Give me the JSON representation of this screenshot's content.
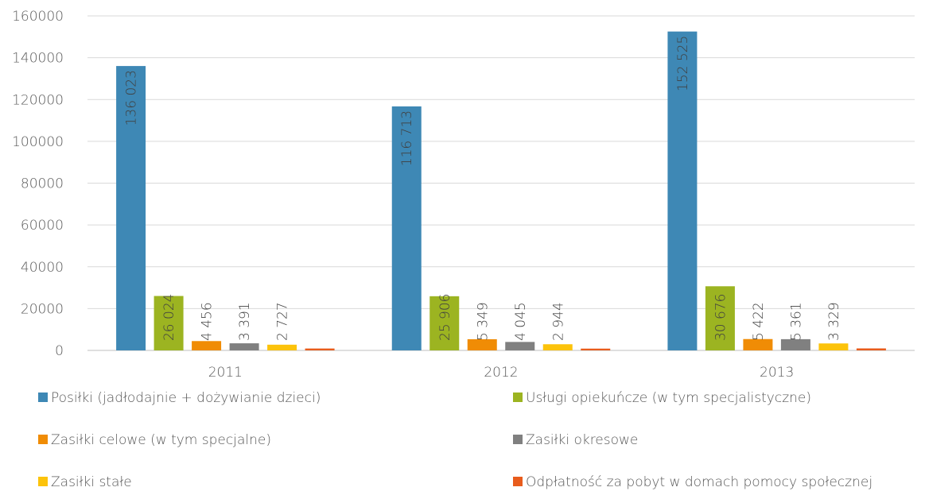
{
  "chart_data": {
    "type": "bar",
    "categories": [
      "2011",
      "2012",
      "2013"
    ],
    "series": [
      {
        "name": "Posiłki (jadłodajnie + dożywianie dzieci)",
        "color": "#3e88b5",
        "values": [
          136023,
          116713,
          152525
        ],
        "value_labels": [
          "136 023",
          "116 713",
          "152 525"
        ]
      },
      {
        "name": "Usługi opiekuńcze (w tym specjalistyczne)",
        "color": "#9cb421",
        "values": [
          26024,
          25906,
          30676
        ],
        "value_labels": [
          "26 024",
          "25 906",
          "30 676"
        ]
      },
      {
        "name": "Zasiłki celowe (w tym specjalne)",
        "color": "#f08c05",
        "values": [
          4456,
          5349,
          5422
        ],
        "value_labels": [
          "4 456",
          "5 349",
          "5 422"
        ]
      },
      {
        "name": "Zasiłki okresowe",
        "color": "#808080",
        "values": [
          3391,
          4045,
          5361
        ],
        "value_labels": [
          "3 391",
          "4 045",
          "5 361"
        ]
      },
      {
        "name": "Zasiłki stałe",
        "color": "#fcc30b",
        "values": [
          2727,
          2944,
          3329
        ],
        "value_labels": [
          "2 727",
          "2 944",
          "3 329"
        ]
      },
      {
        "name": "Odpłatność za pobyt w domach pomocy społecznej",
        "color": "#e85c1c",
        "values": [
          900,
          850,
          950
        ]
      }
    ],
    "ylim": [
      0,
      160000
    ],
    "yticks": [
      0,
      20000,
      40000,
      60000,
      80000,
      100000,
      120000,
      140000,
      160000
    ],
    "grid": true
  }
}
